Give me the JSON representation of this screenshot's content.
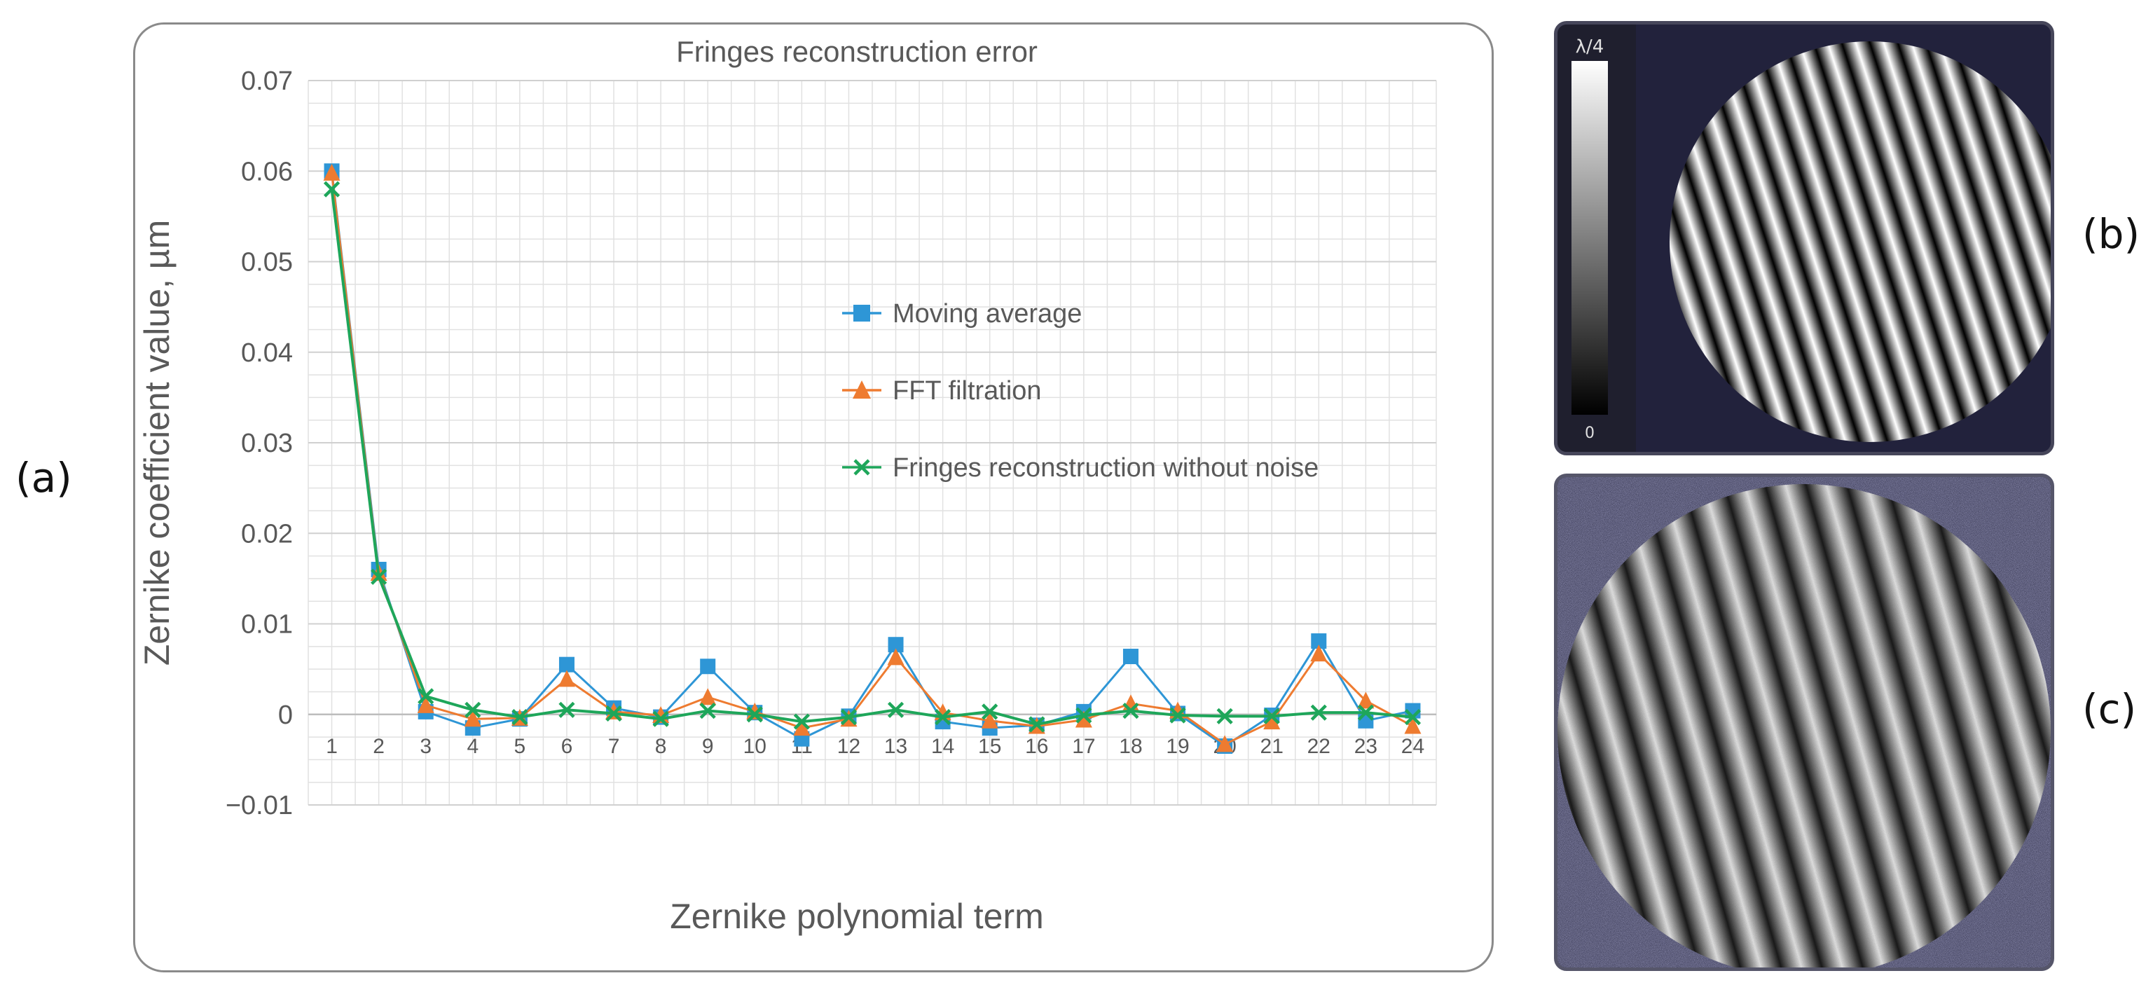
{
  "panel_labels": {
    "a": "(a)",
    "b": "(b)",
    "c": "(c)"
  },
  "chart_data": {
    "type": "line",
    "title": "Fringes reconstruction error",
    "xlabel": "Zernike polynomial term",
    "ylabel": "Zernike coefficient value, µm",
    "categories": [
      "1",
      "2",
      "3",
      "4",
      "5",
      "6",
      "7",
      "8",
      "9",
      "10",
      "11",
      "12",
      "13",
      "14",
      "15",
      "16",
      "17",
      "18",
      "19",
      "20",
      "21",
      "22",
      "23",
      "24"
    ],
    "ylim": [
      -0.01,
      0.07
    ],
    "yticks": [
      -0.01,
      0,
      0.01,
      0.02,
      0.03,
      0.04,
      0.05,
      0.06,
      0.07
    ],
    "ytick_labels": [
      "−0.01",
      "0",
      "0.01",
      "0.02",
      "0.03",
      "0.04",
      "0.05",
      "0.06",
      "0.07"
    ],
    "grid": true,
    "legend_position": "center",
    "series": [
      {
        "name": "Moving average",
        "color": "#2e96d6",
        "marker": "square",
        "values": [
          0.06,
          0.016,
          0.0003,
          -0.0015,
          -0.0005,
          0.0055,
          0.0007,
          -0.0003,
          0.0053,
          0.0002,
          -0.0027,
          -0.0002,
          0.0077,
          -0.0008,
          -0.0015,
          -0.0012,
          0.0003,
          0.0064,
          0.0001,
          -0.0035,
          -0.0001,
          0.0081,
          -0.0007,
          0.0004
        ]
      },
      {
        "name": "FFT filtration",
        "color": "#ee7b30",
        "marker": "triangle",
        "values": [
          0.0598,
          0.0156,
          0.001,
          -0.0005,
          -0.0004,
          0.0039,
          0.0003,
          -0.0001,
          0.0019,
          0.0003,
          -0.0015,
          -0.0005,
          0.0063,
          0.0002,
          -0.0007,
          -0.0013,
          -0.0006,
          0.0012,
          0.0004,
          -0.0033,
          -0.0008,
          0.0067,
          0.0015,
          -0.0013
        ]
      },
      {
        "name": "Fringes reconstruction without noise",
        "color": "#1ea65a",
        "marker": "x",
        "values": [
          0.058,
          0.0152,
          0.002,
          0.0005,
          -0.0003,
          0.0005,
          0.0001,
          -0.0005,
          0.0004,
          0.0,
          -0.0008,
          -0.0003,
          0.0005,
          -0.0003,
          0.0003,
          -0.0011,
          -0.0001,
          0.0004,
          -0.0001,
          -0.0002,
          -0.0002,
          0.0002,
          0.0002,
          -0.0003
        ]
      }
    ]
  },
  "image_b": {
    "colorbar_top_label": "λ/4",
    "colorbar_bottom_label": "0"
  }
}
